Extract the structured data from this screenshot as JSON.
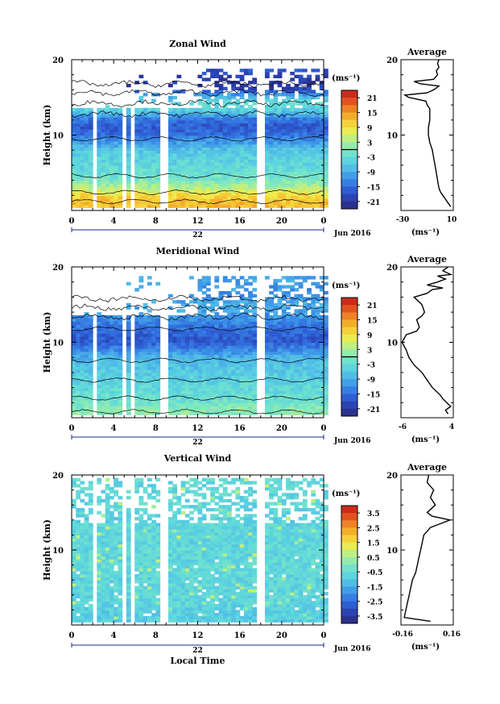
{
  "chart_data": [
    {
      "type": "heatmap",
      "title": "Zonal Wind",
      "ylabel": "Height (km)",
      "ylim": [
        0,
        20
      ],
      "y_ticks": [
        "20",
        "10"
      ],
      "x_ticks": [
        "0",
        "4",
        "8",
        "12",
        "16",
        "20",
        "0"
      ],
      "x_label_day": "22",
      "date_label": "Jun 2016",
      "colorbar": {
        "unit": "(ms⁻¹)",
        "ticks": [
          "21",
          "15",
          "9",
          "3",
          "-3",
          "-9",
          "-15",
          "-21"
        ],
        "range": [
          -24,
          24
        ]
      },
      "data_gaps_hours": [
        [
          2.0,
          2.4
        ],
        [
          4.8,
          5.2
        ],
        [
          5.6,
          6.0
        ],
        [
          8.4,
          9.2
        ],
        [
          17.6,
          18.4
        ]
      ],
      "profile_by_height": [
        {
          "h": 1,
          "v": 12
        },
        {
          "h": 2,
          "v": 9
        },
        {
          "h": 3,
          "v": 3
        },
        {
          "h": 4,
          "v": -1
        },
        {
          "h": 5,
          "v": -3
        },
        {
          "h": 6,
          "v": -4
        },
        {
          "h": 7,
          "v": -5
        },
        {
          "h": 8,
          "v": -7
        },
        {
          "h": 9,
          "v": -11
        },
        {
          "h": 10,
          "v": -15
        },
        {
          "h": 11,
          "v": -17
        },
        {
          "h": 12,
          "v": -14
        },
        {
          "h": 13,
          "v": -6
        },
        {
          "h": 14,
          "v": -3
        },
        {
          "h": 15,
          "v": -9
        },
        {
          "h": 16,
          "v": -20
        },
        {
          "h": 17,
          "v": -22
        },
        {
          "h": 18,
          "v": -18
        }
      ],
      "average_profile": {
        "title": "Average",
        "xlim": [
          -30,
          10
        ],
        "x_ticks": [
          "-30",
          "10"
        ],
        "xlabel": "(ms⁻¹)",
        "y_ticks": [
          "20",
          "10"
        ],
        "points": [
          [
            8,
            0.5
          ],
          [
            6,
            1
          ],
          [
            4,
            1.5
          ],
          [
            2,
            2
          ],
          [
            0,
            2.5
          ],
          [
            -1,
            3
          ],
          [
            -2,
            4
          ],
          [
            -3,
            5
          ],
          [
            -4,
            6
          ],
          [
            -5,
            7
          ],
          [
            -6,
            8
          ],
          [
            -8,
            9
          ],
          [
            -9,
            10
          ],
          [
            -9,
            11
          ],
          [
            -8,
            12
          ],
          [
            -8,
            13
          ],
          [
            -8,
            13.5
          ],
          [
            -10,
            14
          ],
          [
            -11,
            14.5
          ],
          [
            -24,
            15
          ],
          [
            -27,
            15.3
          ],
          [
            -10,
            15.6
          ],
          [
            -5,
            16
          ],
          [
            -1,
            16.5
          ],
          [
            -15,
            16.8
          ],
          [
            -20,
            17.1
          ],
          [
            -5,
            17.4
          ],
          [
            -2,
            18
          ],
          [
            -3,
            18.5
          ],
          [
            -1,
            19
          ],
          [
            -2,
            19.5
          ],
          [
            -1,
            20
          ]
        ]
      }
    },
    {
      "type": "heatmap",
      "title": "Meridional Wind",
      "ylabel": "Height (km)",
      "ylim": [
        0,
        20
      ],
      "y_ticks": [
        "20",
        "10"
      ],
      "x_ticks": [
        "0",
        "4",
        "8",
        "12",
        "16",
        "20",
        "0"
      ],
      "x_label_day": "22",
      "date_label": "Jun 2016",
      "colorbar": {
        "unit": "(ms⁻¹)",
        "ticks": [
          "21",
          "15",
          "9",
          "3",
          "-3",
          "-9",
          "-15",
          "-21"
        ],
        "range": [
          -24,
          24
        ]
      },
      "data_gaps_hours": [
        [
          2.0,
          2.4
        ],
        [
          4.8,
          5.2
        ],
        [
          5.6,
          6.0
        ],
        [
          8.4,
          9.2
        ],
        [
          17.6,
          18.4
        ]
      ],
      "profile_by_height": [
        {
          "h": 1,
          "v": 1
        },
        {
          "h": 2,
          "v": -2
        },
        {
          "h": 3,
          "v": -3
        },
        {
          "h": 4,
          "v": -4
        },
        {
          "h": 5,
          "v": -5
        },
        {
          "h": 6,
          "v": -6
        },
        {
          "h": 7,
          "v": -7
        },
        {
          "h": 8,
          "v": -9
        },
        {
          "h": 9,
          "v": -13
        },
        {
          "h": 10,
          "v": -17
        },
        {
          "h": 11,
          "v": -16
        },
        {
          "h": 12,
          "v": -14
        },
        {
          "h": 13,
          "v": -12
        },
        {
          "h": 14,
          "v": -10
        },
        {
          "h": 15,
          "v": -9
        },
        {
          "h": 16,
          "v": -12
        },
        {
          "h": 17,
          "v": -11
        },
        {
          "h": 18,
          "v": -10
        }
      ],
      "average_profile": {
        "title": "Average",
        "xlim": [
          -6,
          4
        ],
        "x_ticks": [
          "-6",
          "4"
        ],
        "xlabel": "(ms⁻¹)",
        "y_ticks": [
          "20",
          "10"
        ],
        "points": [
          [
            3,
            0.5
          ],
          [
            2.5,
            1
          ],
          [
            3.5,
            1.5
          ],
          [
            2,
            2.5
          ],
          [
            1.5,
            3
          ],
          [
            0,
            4
          ],
          [
            -1,
            5
          ],
          [
            -2,
            6
          ],
          [
            -3.5,
            7
          ],
          [
            -4.5,
            8
          ],
          [
            -5,
            9
          ],
          [
            -5.8,
            10
          ],
          [
            -5,
            11
          ],
          [
            -3,
            11.5
          ],
          [
            -2.5,
            12
          ],
          [
            -3,
            13
          ],
          [
            -2,
            13.5
          ],
          [
            -1.5,
            14
          ],
          [
            -2,
            15
          ],
          [
            -3.5,
            16
          ],
          [
            -1,
            16.5
          ],
          [
            0,
            17
          ],
          [
            2,
            17.2
          ],
          [
            -1,
            17.6
          ],
          [
            1,
            18
          ],
          [
            2.5,
            18.4
          ],
          [
            1,
            18.8
          ],
          [
            3.5,
            19
          ],
          [
            2,
            19.5
          ],
          [
            3,
            20
          ]
        ]
      }
    },
    {
      "type": "heatmap",
      "title": "Vertical Wind",
      "ylabel": "Height (km)",
      "xlabel": "Local Time",
      "ylim": [
        0,
        20
      ],
      "y_ticks": [
        "20",
        "10"
      ],
      "x_ticks": [
        "0",
        "4",
        "8",
        "12",
        "16",
        "20",
        "0"
      ],
      "x_label_day": "22",
      "date_label": "Jun 2016",
      "colorbar": {
        "unit": "(ms⁻¹)",
        "ticks": [
          "3.5",
          "2.5",
          "1.5",
          "0.5",
          "-0.5",
          "-1.5",
          "-2.5",
          "-3.5"
        ],
        "range": [
          -4,
          4
        ]
      },
      "data_gaps_hours": [
        [
          2.0,
          2.4
        ],
        [
          4.8,
          5.2
        ],
        [
          5.6,
          6.0
        ],
        [
          8.4,
          9.2
        ],
        [
          17.6,
          18.4
        ]
      ],
      "profile_by_height": [
        {
          "h": 1,
          "v": -0.9
        },
        {
          "h": 2,
          "v": -0.8
        },
        {
          "h": 3,
          "v": -0.7
        },
        {
          "h": 4,
          "v": -0.7
        },
        {
          "h": 5,
          "v": -0.6
        },
        {
          "h": 6,
          "v": -0.7
        },
        {
          "h": 7,
          "v": -0.6
        },
        {
          "h": 8,
          "v": -0.6
        },
        {
          "h": 9,
          "v": -0.7
        },
        {
          "h": 10,
          "v": -0.6
        },
        {
          "h": 11,
          "v": -0.7
        },
        {
          "h": 12,
          "v": -0.6
        },
        {
          "h": 13,
          "v": -0.7
        },
        {
          "h": 14,
          "v": -0.8
        },
        {
          "h": 15,
          "v": -0.7
        },
        {
          "h": 16,
          "v": -0.6
        },
        {
          "h": 17,
          "v": -0.7
        },
        {
          "h": 18,
          "v": -0.6
        }
      ],
      "average_profile": {
        "title": "Average",
        "xlim": [
          -0.16,
          0.16
        ],
        "x_ticks": [
          "-0.16",
          "0.16"
        ],
        "xlabel": "(ms⁻¹)",
        "y_ticks": [
          "20",
          "10"
        ],
        "points": [
          [
            0.02,
            0.5
          ],
          [
            -0.14,
            1
          ],
          [
            -0.13,
            2
          ],
          [
            -0.12,
            3
          ],
          [
            -0.11,
            4
          ],
          [
            -0.1,
            5
          ],
          [
            -0.09,
            6
          ],
          [
            -0.07,
            7
          ],
          [
            -0.06,
            8
          ],
          [
            -0.05,
            9
          ],
          [
            -0.04,
            10
          ],
          [
            -0.03,
            11
          ],
          [
            -0.02,
            12
          ],
          [
            0.0,
            12.5
          ],
          [
            0.02,
            13
          ],
          [
            0.08,
            13.5
          ],
          [
            0.14,
            14
          ],
          [
            0.03,
            14.5
          ],
          [
            0.0,
            15
          ],
          [
            0.05,
            16
          ],
          [
            0.02,
            17
          ],
          [
            0.04,
            18
          ],
          [
            0.0,
            19
          ],
          [
            0.01,
            20
          ]
        ]
      }
    }
  ]
}
